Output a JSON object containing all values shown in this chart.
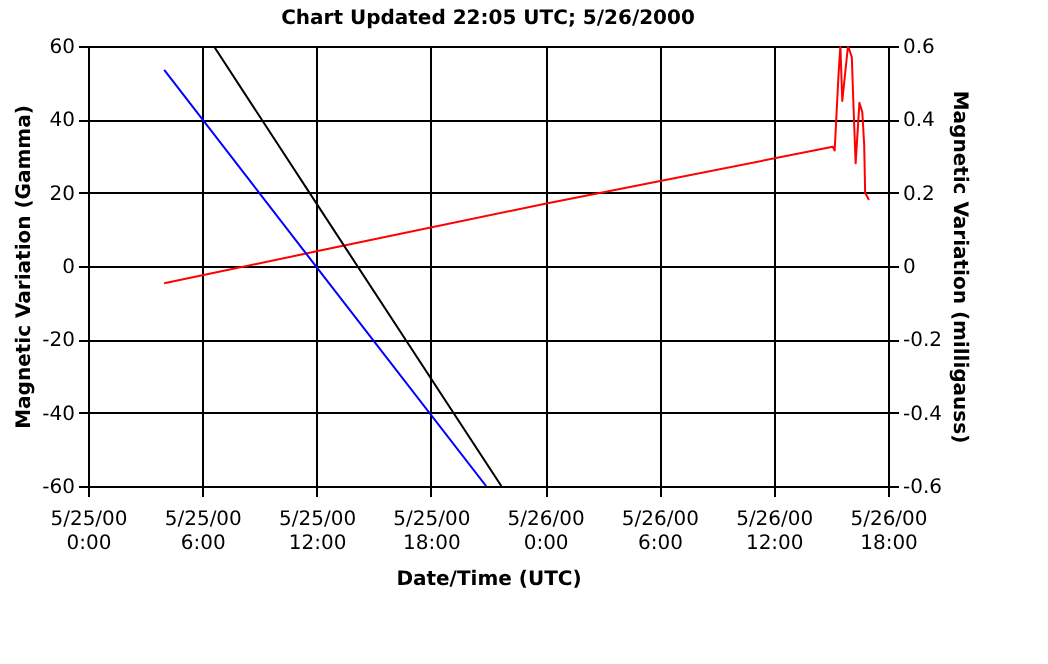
{
  "chart_data": {
    "type": "line",
    "title": "Chart Updated  22:05 UTC;  5/26/2000",
    "xlabel": "Date/Time (UTC)",
    "ylabel": "Magnetic Variation (Gamma)",
    "y2label": "Magnetic Variation (milligauss)",
    "xlim": [
      "2000-05-25T00:00",
      "2000-05-26T18:00"
    ],
    "xticks": [
      {
        "value": "2000-05-25T00:00",
        "label": "5/25/00\n0:00"
      },
      {
        "value": "2000-05-25T06:00",
        "label": "5/25/00\n6:00"
      },
      {
        "value": "2000-05-25T12:00",
        "label": "5/25/00\n12:00"
      },
      {
        "value": "2000-05-25T18:00",
        "label": "5/25/00\n18:00"
      },
      {
        "value": "2000-05-26T00:00",
        "label": "5/26/00\n0:00"
      },
      {
        "value": "2000-05-26T06:00",
        "label": "5/26/00\n6:00"
      },
      {
        "value": "2000-05-26T12:00",
        "label": "5/26/00\n12:00"
      },
      {
        "value": "2000-05-26T18:00",
        "label": "5/26/00\n18:00"
      }
    ],
    "ylim": [
      -60,
      60
    ],
    "yticks": [
      -60,
      -40,
      -20,
      0,
      20,
      40,
      60
    ],
    "y2lim": [
      -0.6,
      0.6
    ],
    "y2ticks": [
      -0.6,
      -0.4,
      -0.2,
      0,
      0.2,
      0.4,
      0.6
    ],
    "grid": true,
    "series": [
      {
        "color": "#ff0000",
        "x": [
          "2000-05-25T04:00",
          "2000-05-25T12:00",
          "2000-05-26T00:00",
          "2000-05-26T15:06",
          "2000-05-26T15:12",
          "2000-05-26T15:24",
          "2000-05-26T15:30",
          "2000-05-26T15:36",
          "2000-05-26T15:45",
          "2000-05-26T15:54",
          "2000-05-26T16:06",
          "2000-05-26T16:12",
          "2000-05-26T16:18",
          "2000-05-26T16:30",
          "2000-05-26T16:39",
          "2000-05-26T16:45",
          "2000-05-26T16:48",
          "2000-05-26T17:00"
        ],
        "values": [
          -4.7,
          4,
          17,
          32.5,
          31.5,
          52,
          60,
          45,
          52.5,
          60,
          57,
          42,
          28,
          44.5,
          42,
          33,
          20,
          18
        ]
      },
      {
        "color": "#0000ff",
        "x": [
          "2000-05-25T04:00",
          "2000-05-25T12:00",
          "2000-05-25T20:54"
        ],
        "values": [
          53.5,
          -0.3,
          -60
        ]
      },
      {
        "color": "#000000",
        "x": [
          "2000-05-25T06:36",
          "2000-05-25T12:00",
          "2000-05-25T21:42"
        ],
        "values": [
          60,
          17,
          -60
        ]
      }
    ]
  }
}
